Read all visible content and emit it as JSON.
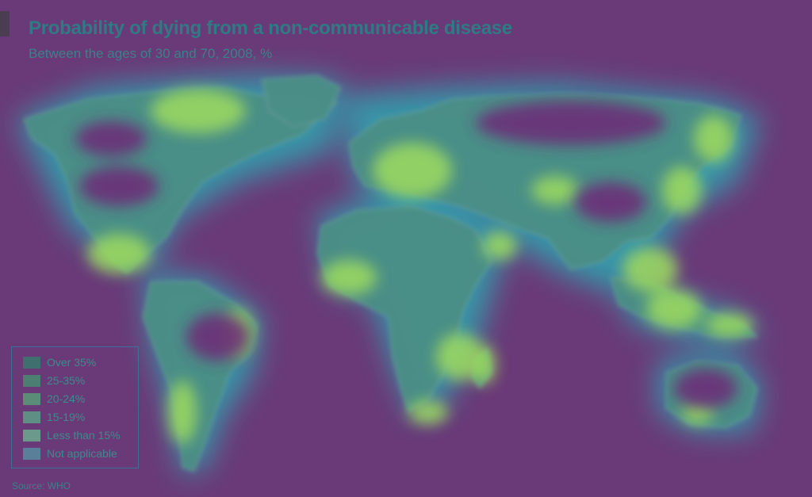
{
  "map": {
    "title": "Probability of dying from a non-communicable disease",
    "subtitle": "Between the ages of 30 and 70, 2008, %",
    "source": "Source: WHO",
    "legend": [
      {
        "label": "Over 35%",
        "color": "#3f6f6f"
      },
      {
        "label": "25-35%",
        "color": "#4c7f72"
      },
      {
        "label": "20-24%",
        "color": "#5a8c78"
      },
      {
        "label": "15-19%",
        "color": "#5f8f84"
      },
      {
        "label": "Less than 15%",
        "color": "#6b9a8c"
      },
      {
        "label": "Not applicable",
        "color": "#5a7f98"
      }
    ],
    "colors": {
      "ocean": "#6a3a78",
      "land_base": "#4d8f88",
      "heat_glow": "#8fd46a",
      "heat_mid": "#2fb3a8",
      "title": "#2f7a84",
      "borders": "#7fb0a8"
    }
  }
}
